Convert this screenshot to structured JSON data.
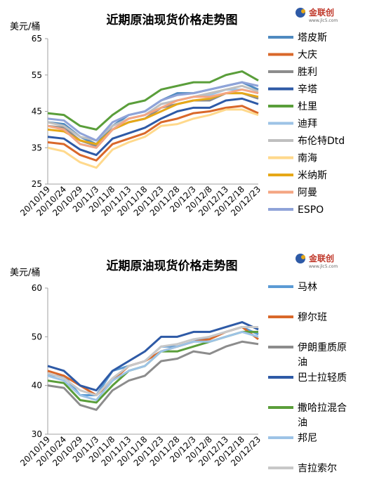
{
  "chart_data": [
    {
      "type": "line",
      "title": "近期原油现货价格走势图",
      "y_label": "美元/桶",
      "logo": "金联创",
      "logo_url": "www.jlc5.com",
      "categories": [
        "20/10/19",
        "20/10/24",
        "20/10/29",
        "20/11/3",
        "20/11/8",
        "20/11/13",
        "20/11/18",
        "20/11/23",
        "20/11/28",
        "20/12/3",
        "20/12/8",
        "20/12/13",
        "20/12/18",
        "20/12/23"
      ],
      "ylim": [
        25,
        65
      ],
      "yticks": [
        25,
        35,
        45,
        55,
        65
      ],
      "legend": "right",
      "series": [
        {
          "name": "塔皮斯",
          "color": "#4f8ac0",
          "values": [
            42,
            41.5,
            38,
            36,
            41,
            44,
            45,
            48,
            50,
            50,
            51,
            52,
            53,
            51
          ]
        },
        {
          "name": "大庆",
          "color": "#d9682a",
          "values": [
            36.5,
            36,
            33,
            31.5,
            36,
            37.5,
            39,
            42,
            43,
            44.5,
            45,
            46,
            46.5,
            44.5
          ]
        },
        {
          "name": "胜利",
          "color": "#8c8c8c",
          "values": [
            41,
            40.5,
            37,
            35.5,
            40,
            42,
            43,
            46,
            47,
            48,
            48,
            50,
            50,
            48.5
          ]
        },
        {
          "name": "辛塔",
          "color": "#2e5aa6",
          "values": [
            38,
            37.5,
            34.5,
            33,
            37.5,
            39,
            40.5,
            43,
            45,
            46,
            46,
            48,
            48.5,
            47
          ]
        },
        {
          "name": "杜里",
          "color": "#5a9e3a",
          "values": [
            44.5,
            44,
            41,
            40,
            44,
            47,
            48,
            51,
            52,
            53,
            53,
            55,
            56,
            53.5
          ]
        },
        {
          "name": "迪拜",
          "color": "#9dc3e6",
          "values": [
            41,
            40,
            36,
            35,
            40,
            43,
            44,
            47,
            48,
            49,
            49.5,
            51,
            51,
            50
          ]
        },
        {
          "name": "布伦特Dtd",
          "color": "#bfbfbf",
          "values": [
            42,
            41,
            38,
            37,
            41,
            43,
            44,
            47,
            48,
            49,
            50,
            51,
            52,
            50.5
          ]
        },
        {
          "name": "南海",
          "color": "#ffd98c",
          "values": [
            35,
            34,
            31,
            29.5,
            34.5,
            36.5,
            38,
            41,
            41.5,
            43,
            44,
            45.5,
            45.5,
            44
          ]
        },
        {
          "name": "米纳斯",
          "color": "#e6a817",
          "values": [
            40,
            39.5,
            37,
            36,
            40,
            42,
            43,
            45,
            47,
            48,
            48.5,
            50,
            50,
            49
          ]
        },
        {
          "name": "阿曼",
          "color": "#f4a582",
          "values": [
            41,
            40,
            36,
            35,
            40,
            43,
            44,
            46,
            48,
            49,
            49,
            50,
            51,
            50
          ]
        },
        {
          "name": "ESPO",
          "color": "#8fa3d8",
          "values": [
            43,
            42.5,
            39,
            37,
            42,
            44,
            45,
            48,
            49.5,
            50,
            51,
            52,
            53,
            52
          ]
        }
      ]
    },
    {
      "type": "line",
      "title": "近期原油现货价格走势图",
      "y_label": "美元/桶",
      "logo": "金联创",
      "logo_url": "www.jlc5.com",
      "categories": [
        "20/10/19",
        "20/10/24",
        "20/10/29",
        "20/11/3",
        "20/11/8",
        "20/11/13",
        "20/11/18",
        "20/11/23",
        "20/11/28",
        "20/12/3",
        "20/12/8",
        "20/12/13",
        "20/12/18",
        "20/12/23"
      ],
      "ylim": [
        30,
        60
      ],
      "yticks": [
        30,
        40,
        50,
        60
      ],
      "legend": "right",
      "series": [
        {
          "name": "马林",
          "color": "#5b9bd5",
          "values": [
            42,
            42,
            38,
            38,
            43,
            44,
            45,
            48,
            48,
            49,
            50,
            51,
            52,
            50.5
          ]
        },
        {
          "name": "穆尔班",
          "color": "#d9682a",
          "values": [
            43,
            42,
            40,
            38,
            41,
            44,
            45,
            47,
            48,
            49,
            49.5,
            51,
            52,
            49.5
          ]
        },
        {
          "name": "伊朗重质原油",
          "color": "#8c8c8c",
          "values": [
            40,
            39.5,
            36,
            35,
            39,
            41,
            42,
            45,
            45.5,
            47,
            46.5,
            48,
            49,
            48.5
          ]
        },
        {
          "name": "巴士拉轻质",
          "color": "#2e5aa6",
          "values": [
            44,
            43,
            40,
            39,
            43,
            45,
            47,
            50,
            50,
            51,
            51,
            52,
            53,
            51.5
          ]
        },
        {
          "name": "撒哈拉混合油",
          "color": "#5a9e3a",
          "values": [
            41,
            40.5,
            37,
            36.5,
            40,
            43,
            44,
            47,
            47,
            48,
            49,
            50,
            51,
            51
          ]
        },
        {
          "name": "邦尼",
          "color": "#9dc3e6",
          "values": [
            42,
            41,
            38,
            37,
            41,
            43,
            44,
            47,
            48,
            49,
            49,
            50,
            51,
            50
          ]
        },
        {
          "name": "吉拉索尔",
          "color": "#c8c8c8",
          "values": [
            42.5,
            41.5,
            39,
            38,
            41.5,
            44,
            45,
            48,
            48.5,
            49.5,
            50,
            51,
            52,
            52
          ]
        }
      ]
    }
  ]
}
